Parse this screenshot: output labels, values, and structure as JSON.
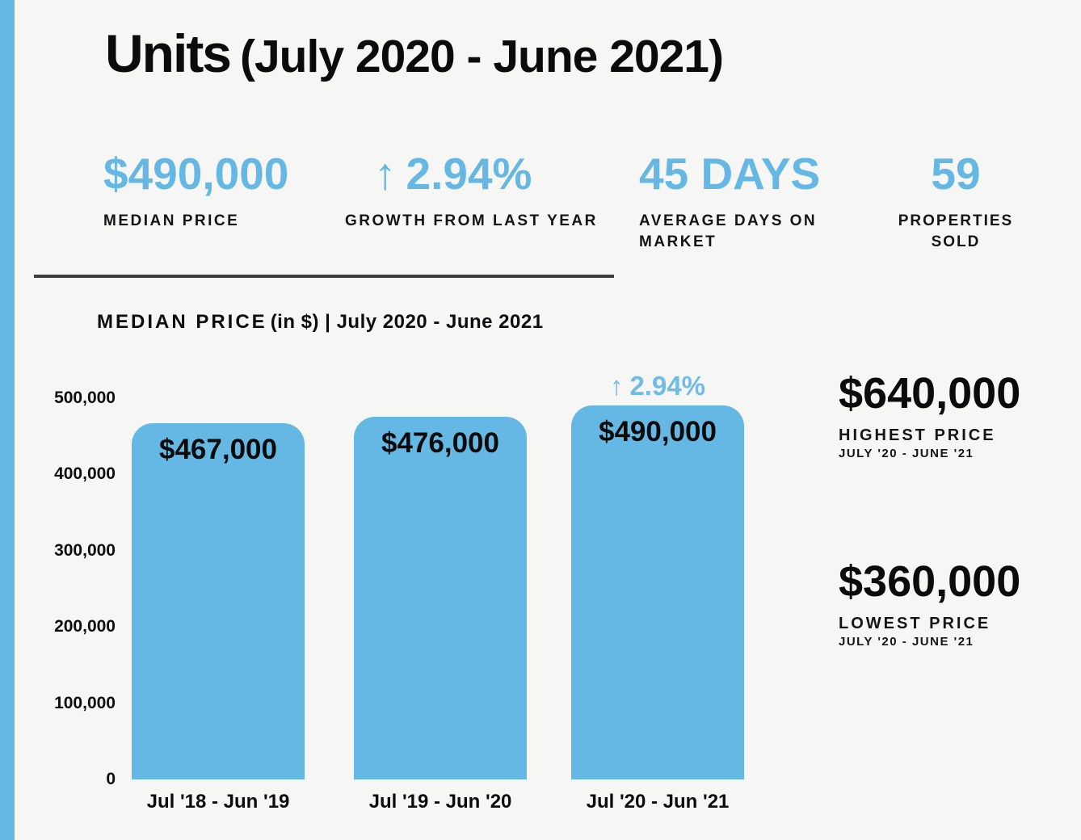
{
  "colors": {
    "accent_blue": "#66b8e4",
    "text_black": "#0b0b0b",
    "background": "#f6f6f4",
    "divider_gray": "#3d3d3d"
  },
  "header": {
    "title": "Units",
    "subtitle": "(July 2020 - June 2021)"
  },
  "summary_stats": [
    {
      "value": "$490,000",
      "label": "MEDIAN PRICE"
    },
    {
      "arrow": "↑",
      "value": "2.94%",
      "label": "GROWTH FROM LAST YEAR"
    },
    {
      "value": "45 DAYS",
      "label": "AVERAGE DAYS ON MARKET"
    },
    {
      "value": "59",
      "label": "PROPERTIES SOLD"
    }
  ],
  "chart_heading": {
    "title": "MEDIAN PRICE",
    "subtitle": "(in $) | July 2020 - June 2021"
  },
  "chart_data": {
    "type": "bar",
    "title": "MEDIAN PRICE (in $) | July 2020 - June 2021",
    "categories": [
      "Jul '18 - Jun '19",
      "Jul '19 - Jun '20",
      "Jul '20 - Jun '21"
    ],
    "values": [
      467000,
      476000,
      490000
    ],
    "bar_labels": [
      "$467,000",
      "$476,000",
      "$490,000"
    ],
    "annotation": {
      "arrow": "↑",
      "text": "2.94%",
      "bar_index": 2
    },
    "y_ticks": [
      {
        "label": "500,000",
        "value": 500000
      },
      {
        "label": "400,000",
        "value": 400000
      },
      {
        "label": "300,000",
        "value": 300000
      },
      {
        "label": "200,000",
        "value": 200000
      },
      {
        "label": "100,000",
        "value": 100000
      },
      {
        "label": "0",
        "value": 0
      }
    ],
    "ylim": [
      0,
      500000
    ],
    "grid": false,
    "legend": false,
    "bar_color": "#66b8e4"
  },
  "side_stats": [
    {
      "value": "$640,000",
      "label": "HIGHEST PRICE",
      "period": "JULY '20 - JUNE '21"
    },
    {
      "value": "$360,000",
      "label": "LOWEST PRICE",
      "period": "JULY '20 - JUNE '21"
    }
  ]
}
